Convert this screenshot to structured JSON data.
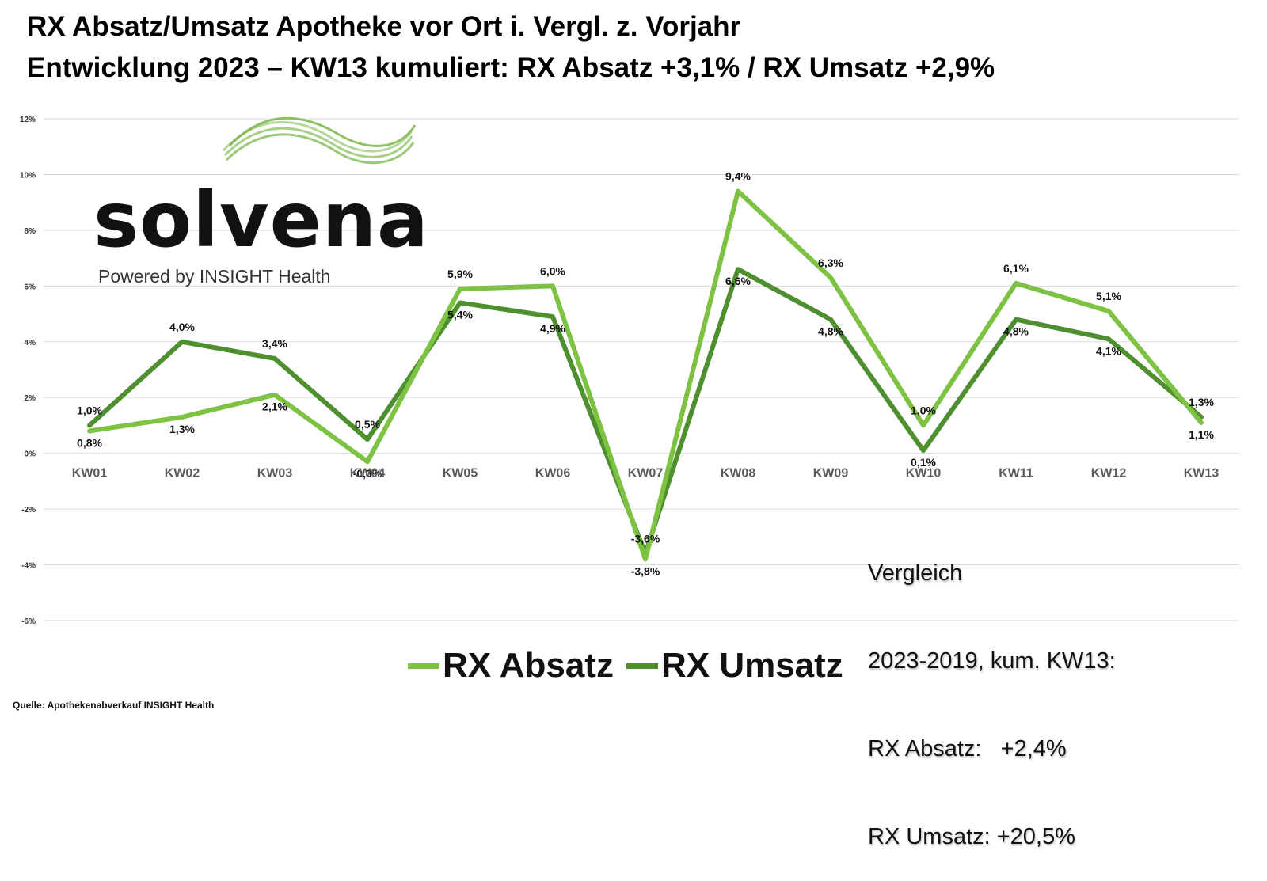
{
  "header": {
    "title_line1": "RX Absatz/Umsatz Apotheke vor Ort i. Vergl. z. Vorjahr",
    "title_line2": "Entwicklung 2023 – KW13 kumuliert: RX Absatz +3,1% / RX Umsatz +2,9%"
  },
  "logo": {
    "wordmark": "solvena",
    "tagline": "Powered by INSIGHT Health",
    "wave_color": "#7ab648"
  },
  "comparison_box": {
    "lines": [
      "Vergleich",
      "2023-2019, kum. KW13:",
      "RX Absatz:   +2,4%",
      "RX Umsatz: +20,5%"
    ]
  },
  "source_note": "Quelle: Apothekenabverkauf INSIGHT Health",
  "chart_data": {
    "type": "line",
    "categories": [
      "KW01",
      "KW02",
      "KW03",
      "KW04",
      "KW05",
      "KW06",
      "KW07",
      "KW08",
      "KW09",
      "KW10",
      "KW11",
      "KW12",
      "KW13"
    ],
    "ylim": [
      -6,
      12
    ],
    "yticks": [
      -6,
      -4,
      -2,
      0,
      2,
      4,
      6,
      8,
      10,
      12
    ],
    "ytick_labels": [
      "-6%",
      "-4%",
      "-2%",
      "0%",
      "2%",
      "4%",
      "6%",
      "8%",
      "10%",
      "12%"
    ],
    "grid": true,
    "legend_position": "bottom",
    "series": [
      {
        "name": "RX Absatz",
        "color": "#7dc242",
        "values": [
          0.8,
          1.3,
          2.1,
          -0.3,
          5.9,
          6.0,
          -3.8,
          9.4,
          6.3,
          1.0,
          6.1,
          5.1,
          1.1
        ],
        "labels": [
          "0,8%",
          "1,3%",
          "2,1%",
          "-0,3%",
          "5,9%",
          "6,0%",
          "-3,8%",
          "9,4%",
          "6,3%",
          "1,0%",
          "6,1%",
          "5,1%",
          "1,1%"
        ]
      },
      {
        "name": "RX Umsatz",
        "color": "#4e8f30",
        "values": [
          1.0,
          4.0,
          3.4,
          0.5,
          5.4,
          4.9,
          -3.6,
          6.6,
          4.8,
          0.1,
          4.8,
          4.1,
          1.3
        ],
        "labels": [
          "1,0%",
          "4,0%",
          "3,4%",
          "0,5%",
          "5,4%",
          "4,9%",
          "-3,6%",
          "6,6%",
          "4,8%",
          "0,1%",
          "4,8%",
          "4,1%",
          "1,3%"
        ]
      }
    ]
  }
}
